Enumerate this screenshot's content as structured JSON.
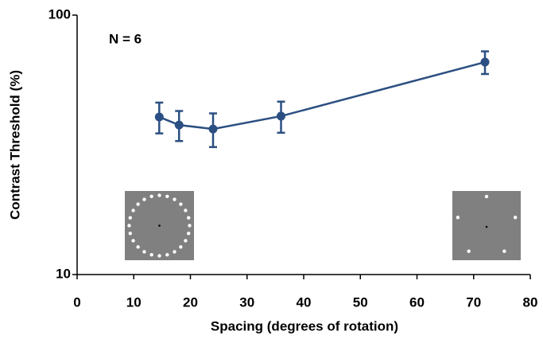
{
  "chart_data": {
    "type": "line",
    "x_label": "Spacing (degrees of rotation)",
    "y_label": "Contrast Threshold (%)",
    "annotation": "N = 6",
    "x": [
      14.5,
      18,
      24,
      36,
      72
    ],
    "series": [
      {
        "color": "#2b4f82",
        "values": [
          40.5,
          37.7,
          36.4,
          40.8,
          65.9
        ],
        "errors": [
          5.5,
          5,
          5.4,
          5.6,
          6.6
        ]
      }
    ],
    "xlim": [
      0,
      80
    ],
    "xticks": [
      0,
      10,
      20,
      30,
      40,
      50,
      60,
      70,
      80
    ],
    "ylim": [
      10,
      100
    ],
    "yticks": [
      10,
      100
    ],
    "log_y": true
  }
}
